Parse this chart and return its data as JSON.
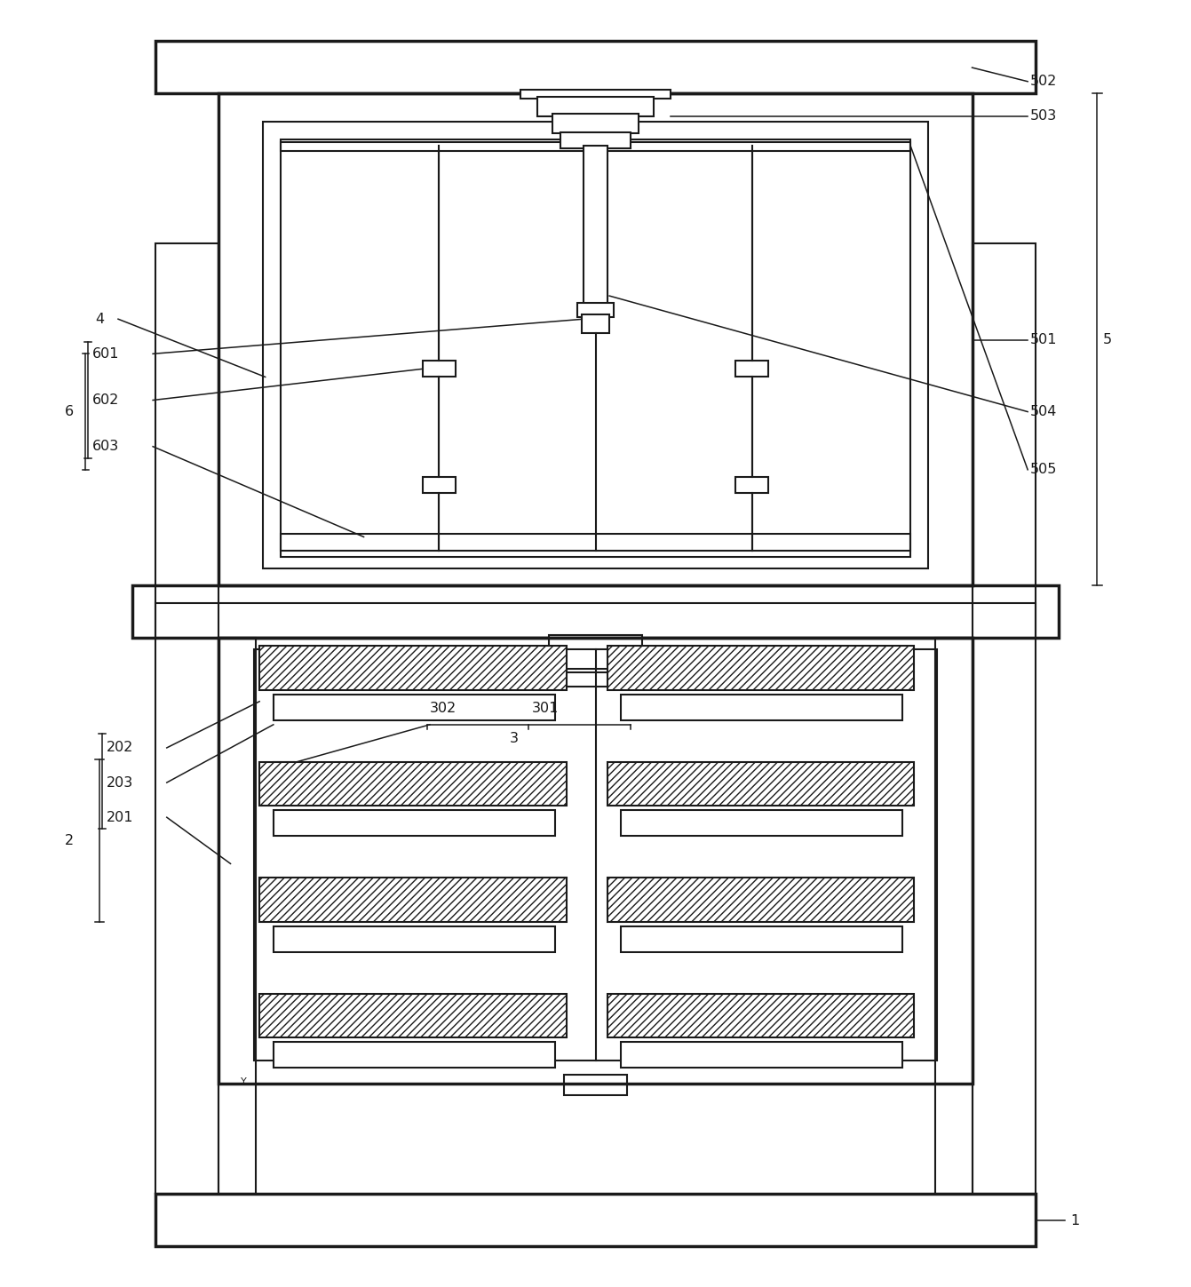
{
  "bg_color": "#ffffff",
  "line_color": "#1a1a1a",
  "lw": 1.5,
  "tlw": 2.5
}
